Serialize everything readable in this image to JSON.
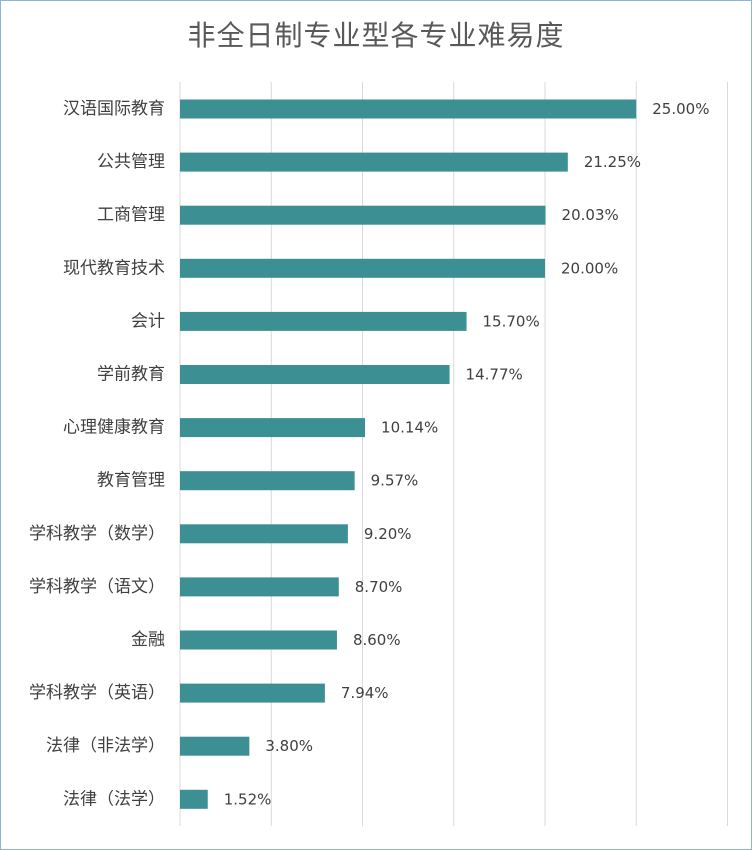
{
  "chart_data": {
    "type": "bar",
    "orientation": "horizontal",
    "title": "非全日制专业型各专业难易度",
    "categories": [
      "汉语国际教育",
      "公共管理",
      "工商管理",
      "现代教育技术",
      "会计",
      "学前教育",
      "心理健康教育",
      "教育管理",
      "学科教学（数学）",
      "学科教学（语文）",
      "金融",
      "学科教学（英语）",
      "法律（非法学）",
      "法律（法学）"
    ],
    "values": [
      25.0,
      21.25,
      20.03,
      20.0,
      15.7,
      14.77,
      10.14,
      9.57,
      9.2,
      8.7,
      8.6,
      7.94,
      3.8,
      1.52
    ],
    "value_labels": [
      "25.00%",
      "21.25%",
      "20.03%",
      "20.00%",
      "15.70%",
      "14.77%",
      "10.14%",
      "9.57%",
      "9.20%",
      "8.70%",
      "8.60%",
      "7.94%",
      "3.80%",
      "1.52%"
    ],
    "xlim": [
      0,
      30
    ],
    "grid": true,
    "legend": "none",
    "bar_color": "#3c8f93",
    "xlabel": "",
    "ylabel": ""
  }
}
